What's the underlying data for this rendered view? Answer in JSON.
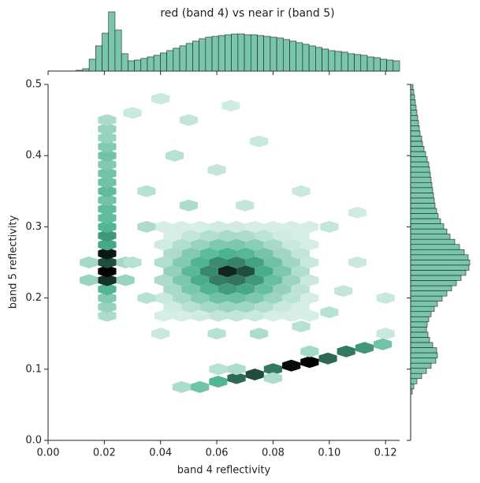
{
  "chart_data": {
    "type": "hexbin",
    "title": "red (band 4) vs near ir (band 5)",
    "x_label": "band 4 reflectivity",
    "y_label": "band 5 reflectivity",
    "color": "#4CB391",
    "xlim": [
      0,
      0.125
    ],
    "ylim": [
      0,
      0.5
    ],
    "xticks": [
      {
        "value": 0,
        "label": "0.00"
      },
      0.02,
      0.04,
      0.06,
      0.08,
      {
        "value": 0.1,
        "label": "0.10"
      },
      0.12
    ],
    "yticks": [
      {
        "value": 0,
        "label": "0.0"
      },
      0.1,
      0.2,
      0.3,
      0.4,
      0.5
    ],
    "hexbin": [
      {
        "x": 0.021,
        "y": 0.175,
        "value": 10
      },
      {
        "x": 0.021,
        "y": 0.1875,
        "value": 15
      },
      {
        "x": 0.021,
        "y": 0.2,
        "value": 20
      },
      {
        "x": 0.021,
        "y": 0.2125,
        "value": 35
      },
      {
        "x": 0.021,
        "y": 0.225,
        "value": 80
      },
      {
        "x": 0.021,
        "y": 0.2375,
        "value": 100
      },
      {
        "x": 0.021,
        "y": 0.25,
        "value": 70
      },
      {
        "x": 0.021,
        "y": 0.2625,
        "value": 90
      },
      {
        "x": 0.021,
        "y": 0.275,
        "value": 40
      },
      {
        "x": 0.021,
        "y": 0.2875,
        "value": 45
      },
      {
        "x": 0.021,
        "y": 0.3,
        "value": 35
      },
      {
        "x": 0.021,
        "y": 0.3125,
        "value": 30
      },
      {
        "x": 0.021,
        "y": 0.325,
        "value": 30
      },
      {
        "x": 0.021,
        "y": 0.3375,
        "value": 25
      },
      {
        "x": 0.021,
        "y": 0.35,
        "value": 30
      },
      {
        "x": 0.021,
        "y": 0.3625,
        "value": 25
      },
      {
        "x": 0.021,
        "y": 0.375,
        "value": 25
      },
      {
        "x": 0.021,
        "y": 0.3875,
        "value": 20
      },
      {
        "x": 0.021,
        "y": 0.4,
        "value": 25
      },
      {
        "x": 0.021,
        "y": 0.4125,
        "value": 20
      },
      {
        "x": 0.021,
        "y": 0.425,
        "value": 15
      },
      {
        "x": 0.021,
        "y": 0.4375,
        "value": 15
      },
      {
        "x": 0.021,
        "y": 0.45,
        "value": 10
      },
      {
        "x": 0.0145,
        "y": 0.225,
        "value": 15
      },
      {
        "x": 0.0275,
        "y": 0.225,
        "value": 15
      },
      {
        "x": 0.0145,
        "y": 0.25,
        "value": 12
      },
      {
        "x": 0.0275,
        "y": 0.25,
        "value": 12
      },
      {
        "x": 0.041,
        "y": 0.175,
        "value": 3
      },
      {
        "x": 0.0475,
        "y": 0.175,
        "value": 3
      },
      {
        "x": 0.054,
        "y": 0.175,
        "value": 4
      },
      {
        "x": 0.0605,
        "y": 0.175,
        "value": 6
      },
      {
        "x": 0.067,
        "y": 0.175,
        "value": 6
      },
      {
        "x": 0.0735,
        "y": 0.175,
        "value": 5
      },
      {
        "x": 0.08,
        "y": 0.175,
        "value": 3
      },
      {
        "x": 0.0865,
        "y": 0.175,
        "value": 3
      },
      {
        "x": 0.093,
        "y": 0.175,
        "value": 3
      },
      {
        "x": 0.04425,
        "y": 0.1875,
        "value": 4
      },
      {
        "x": 0.05075,
        "y": 0.1875,
        "value": 8
      },
      {
        "x": 0.05725,
        "y": 0.1875,
        "value": 12
      },
      {
        "x": 0.06375,
        "y": 0.1875,
        "value": 14
      },
      {
        "x": 0.07025,
        "y": 0.1875,
        "value": 13
      },
      {
        "x": 0.07675,
        "y": 0.1875,
        "value": 9
      },
      {
        "x": 0.08325,
        "y": 0.1875,
        "value": 5
      },
      {
        "x": 0.08975,
        "y": 0.1875,
        "value": 3
      },
      {
        "x": 0.041,
        "y": 0.2,
        "value": 5
      },
      {
        "x": 0.0475,
        "y": 0.2,
        "value": 11
      },
      {
        "x": 0.054,
        "y": 0.2,
        "value": 19
      },
      {
        "x": 0.0605,
        "y": 0.2,
        "value": 26
      },
      {
        "x": 0.067,
        "y": 0.2,
        "value": 27
      },
      {
        "x": 0.0735,
        "y": 0.2,
        "value": 22
      },
      {
        "x": 0.08,
        "y": 0.2,
        "value": 14
      },
      {
        "x": 0.0865,
        "y": 0.2,
        "value": 7
      },
      {
        "x": 0.093,
        "y": 0.2,
        "value": 3
      },
      {
        "x": 0.04425,
        "y": 0.2125,
        "value": 11
      },
      {
        "x": 0.05075,
        "y": 0.2125,
        "value": 23
      },
      {
        "x": 0.05725,
        "y": 0.2125,
        "value": 36
      },
      {
        "x": 0.06375,
        "y": 0.2125,
        "value": 44
      },
      {
        "x": 0.07025,
        "y": 0.2125,
        "value": 40
      },
      {
        "x": 0.07675,
        "y": 0.2125,
        "value": 28
      },
      {
        "x": 0.08325,
        "y": 0.2125,
        "value": 16
      },
      {
        "x": 0.08975,
        "y": 0.2125,
        "value": 7
      },
      {
        "x": 0.041,
        "y": 0.225,
        "value": 10
      },
      {
        "x": 0.0475,
        "y": 0.225,
        "value": 22
      },
      {
        "x": 0.054,
        "y": 0.225,
        "value": 39
      },
      {
        "x": 0.0605,
        "y": 0.225,
        "value": 53
      },
      {
        "x": 0.067,
        "y": 0.225,
        "value": 56
      },
      {
        "x": 0.0735,
        "y": 0.225,
        "value": 45
      },
      {
        "x": 0.08,
        "y": 0.225,
        "value": 28
      },
      {
        "x": 0.0865,
        "y": 0.225,
        "value": 14
      },
      {
        "x": 0.093,
        "y": 0.225,
        "value": 5
      },
      {
        "x": 0.04425,
        "y": 0.2375,
        "value": 16
      },
      {
        "x": 0.05075,
        "y": 0.2375,
        "value": 32
      },
      {
        "x": 0.05725,
        "y": 0.2375,
        "value": 50
      },
      {
        "x": 0.06375,
        "y": 0.2375,
        "value": 85
      },
      {
        "x": 0.07025,
        "y": 0.2375,
        "value": 70
      },
      {
        "x": 0.07675,
        "y": 0.2375,
        "value": 39
      },
      {
        "x": 0.08325,
        "y": 0.2375,
        "value": 22
      },
      {
        "x": 0.08975,
        "y": 0.2375,
        "value": 9
      },
      {
        "x": 0.041,
        "y": 0.25,
        "value": 9
      },
      {
        "x": 0.0475,
        "y": 0.25,
        "value": 20
      },
      {
        "x": 0.054,
        "y": 0.25,
        "value": 36
      },
      {
        "x": 0.0605,
        "y": 0.25,
        "value": 49
      },
      {
        "x": 0.067,
        "y": 0.25,
        "value": 52
      },
      {
        "x": 0.0735,
        "y": 0.25,
        "value": 42
      },
      {
        "x": 0.08,
        "y": 0.25,
        "value": 26
      },
      {
        "x": 0.0865,
        "y": 0.25,
        "value": 13
      },
      {
        "x": 0.093,
        "y": 0.25,
        "value": 5
      },
      {
        "x": 0.04425,
        "y": 0.2625,
        "value": 10
      },
      {
        "x": 0.05075,
        "y": 0.2625,
        "value": 20
      },
      {
        "x": 0.05725,
        "y": 0.2625,
        "value": 31
      },
      {
        "x": 0.06375,
        "y": 0.2625,
        "value": 37
      },
      {
        "x": 0.07025,
        "y": 0.2625,
        "value": 34
      },
      {
        "x": 0.07675,
        "y": 0.2625,
        "value": 24
      },
      {
        "x": 0.08325,
        "y": 0.2625,
        "value": 13
      },
      {
        "x": 0.08975,
        "y": 0.2625,
        "value": 6
      },
      {
        "x": 0.041,
        "y": 0.275,
        "value": 4
      },
      {
        "x": 0.0475,
        "y": 0.275,
        "value": 9
      },
      {
        "x": 0.054,
        "y": 0.275,
        "value": 15
      },
      {
        "x": 0.0605,
        "y": 0.275,
        "value": 21
      },
      {
        "x": 0.067,
        "y": 0.275,
        "value": 22
      },
      {
        "x": 0.0735,
        "y": 0.275,
        "value": 18
      },
      {
        "x": 0.08,
        "y": 0.275,
        "value": 11
      },
      {
        "x": 0.0865,
        "y": 0.275,
        "value": 5
      },
      {
        "x": 0.093,
        "y": 0.275,
        "value": 3
      },
      {
        "x": 0.04425,
        "y": 0.2875,
        "value": 3
      },
      {
        "x": 0.05075,
        "y": 0.2875,
        "value": 6
      },
      {
        "x": 0.05725,
        "y": 0.2875,
        "value": 9
      },
      {
        "x": 0.06375,
        "y": 0.2875,
        "value": 11
      },
      {
        "x": 0.07025,
        "y": 0.2875,
        "value": 10
      },
      {
        "x": 0.07675,
        "y": 0.2875,
        "value": 7
      },
      {
        "x": 0.08325,
        "y": 0.2875,
        "value": 4
      },
      {
        "x": 0.08975,
        "y": 0.2875,
        "value": 3
      },
      {
        "x": 0.041,
        "y": 0.3,
        "value": 3
      },
      {
        "x": 0.0475,
        "y": 0.3,
        "value": 3
      },
      {
        "x": 0.054,
        "y": 0.3,
        "value": 3
      },
      {
        "x": 0.0605,
        "y": 0.3,
        "value": 4
      },
      {
        "x": 0.067,
        "y": 0.3,
        "value": 4
      },
      {
        "x": 0.0735,
        "y": 0.3,
        "value": 3
      },
      {
        "x": 0.08,
        "y": 0.3,
        "value": 3
      },
      {
        "x": 0.0865,
        "y": 0.3,
        "value": 3
      },
      {
        "x": 0.093,
        "y": 0.3,
        "value": 3
      },
      {
        "x": 0.0475,
        "y": 0.075,
        "value": 10
      },
      {
        "x": 0.054,
        "y": 0.075,
        "value": 25
      },
      {
        "x": 0.0605,
        "y": 0.0825,
        "value": 35
      },
      {
        "x": 0.067,
        "y": 0.0875,
        "value": 60
      },
      {
        "x": 0.0735,
        "y": 0.0925,
        "value": 70
      },
      {
        "x": 0.08,
        "y": 0.1,
        "value": 55
      },
      {
        "x": 0.0865,
        "y": 0.105,
        "value": 95
      },
      {
        "x": 0.093,
        "y": 0.11,
        "value": 100
      },
      {
        "x": 0.0995,
        "y": 0.115,
        "value": 60
      },
      {
        "x": 0.106,
        "y": 0.125,
        "value": 55
      },
      {
        "x": 0.1125,
        "y": 0.13,
        "value": 45
      },
      {
        "x": 0.119,
        "y": 0.135,
        "value": 25
      },
      {
        "x": 0.067,
        "y": 0.1,
        "value": 10
      },
      {
        "x": 0.08,
        "y": 0.0875,
        "value": 10
      },
      {
        "x": 0.093,
        "y": 0.125,
        "value": 12
      },
      {
        "x": 0.0605,
        "y": 0.1,
        "value": 8
      },
      {
        "x": 0.035,
        "y": 0.35,
        "value": 8
      },
      {
        "x": 0.045,
        "y": 0.4,
        "value": 8
      },
      {
        "x": 0.05,
        "y": 0.45,
        "value": 6
      },
      {
        "x": 0.06,
        "y": 0.38,
        "value": 6
      },
      {
        "x": 0.075,
        "y": 0.42,
        "value": 5
      },
      {
        "x": 0.09,
        "y": 0.35,
        "value": 5
      },
      {
        "x": 0.1,
        "y": 0.3,
        "value": 6
      },
      {
        "x": 0.11,
        "y": 0.25,
        "value": 5
      },
      {
        "x": 0.12,
        "y": 0.2,
        "value": 5
      },
      {
        "x": 0.1,
        "y": 0.18,
        "value": 8
      },
      {
        "x": 0.09,
        "y": 0.16,
        "value": 8
      },
      {
        "x": 0.075,
        "y": 0.15,
        "value": 10
      },
      {
        "x": 0.06,
        "y": 0.15,
        "value": 8
      },
      {
        "x": 0.04,
        "y": 0.15,
        "value": 5
      },
      {
        "x": 0.035,
        "y": 0.2,
        "value": 8
      },
      {
        "x": 0.03,
        "y": 0.25,
        "value": 8
      },
      {
        "x": 0.035,
        "y": 0.3,
        "value": 10
      },
      {
        "x": 0.05,
        "y": 0.33,
        "value": 10
      },
      {
        "x": 0.07,
        "y": 0.33,
        "value": 6
      },
      {
        "x": 0.04,
        "y": 0.48,
        "value": 5
      },
      {
        "x": 0.03,
        "y": 0.46,
        "value": 5
      },
      {
        "x": 0.11,
        "y": 0.32,
        "value": 4
      },
      {
        "x": 0.12,
        "y": 0.15,
        "value": 5
      },
      {
        "x": 0.105,
        "y": 0.21,
        "value": 6
      },
      {
        "x": 0.065,
        "y": 0.47,
        "value": 4
      }
    ],
    "x_marginal": {
      "bins": [
        0.01,
        0.0123,
        0.0146,
        0.0169,
        0.0192,
        0.0215,
        0.0238,
        0.0261,
        0.0284,
        0.0307,
        0.033,
        0.0353,
        0.0376,
        0.0399,
        0.0422,
        0.0445,
        0.0468,
        0.0491,
        0.0514,
        0.0537,
        0.056,
        0.0583,
        0.0606,
        0.0629,
        0.0652,
        0.0675,
        0.0698,
        0.0721,
        0.0744,
        0.0767,
        0.079,
        0.0813,
        0.0836,
        0.0859,
        0.0882,
        0.0905,
        0.0928,
        0.0951,
        0.0974,
        0.0997,
        0.102,
        0.1043,
        0.1066,
        0.1089,
        0.1112,
        0.1135,
        0.1158,
        0.1181,
        0.1204,
        0.1227,
        0.125
      ],
      "values": [
        1,
        3,
        15,
        32,
        48,
        75,
        52,
        22,
        13,
        14,
        16,
        18,
        20,
        23,
        26,
        29,
        32,
        35,
        38,
        41,
        43,
        44,
        45,
        46,
        47,
        47,
        46,
        46,
        45,
        44,
        43,
        42,
        40,
        38,
        36,
        34,
        32,
        30,
        28,
        26,
        25,
        24,
        22,
        21,
        20,
        18,
        17,
        15,
        14,
        13
      ]
    },
    "y_marginal": {
      "bins": [
        0.065,
        0.07225,
        0.0795,
        0.08675,
        0.094,
        0.10125,
        0.1085,
        0.11575,
        0.123,
        0.13025,
        0.1375,
        0.14475,
        0.152,
        0.15925,
        0.1665,
        0.17375,
        0.181,
        0.18825,
        0.1955,
        0.20275,
        0.21,
        0.21725,
        0.2245,
        0.23175,
        0.239,
        0.24625,
        0.2535,
        0.26075,
        0.268,
        0.27525,
        0.2825,
        0.28975,
        0.297,
        0.30425,
        0.3115,
        0.31875,
        0.326,
        0.33325,
        0.3405,
        0.34775,
        0.355,
        0.36225,
        0.3695,
        0.37675,
        0.384,
        0.39125,
        0.3985,
        0.40575,
        0.413,
        0.42025,
        0.4275,
        0.43475,
        0.442,
        0.44925,
        0.4565,
        0.46375,
        0.471,
        0.47825,
        0.4855,
        0.49275,
        0.5
      ],
      "values": [
        2,
        4,
        8,
        14,
        20,
        26,
        32,
        34,
        33,
        28,
        24,
        22,
        20,
        21,
        23,
        26,
        30,
        34,
        40,
        46,
        52,
        58,
        64,
        70,
        74,
        75,
        73,
        68,
        62,
        56,
        50,
        46,
        42,
        38,
        35,
        33,
        31,
        30,
        29,
        28,
        27,
        26,
        25,
        24,
        23,
        21,
        19,
        17,
        15,
        14,
        12,
        11,
        10,
        9,
        8,
        7,
        6,
        5,
        4,
        3
      ]
    }
  }
}
